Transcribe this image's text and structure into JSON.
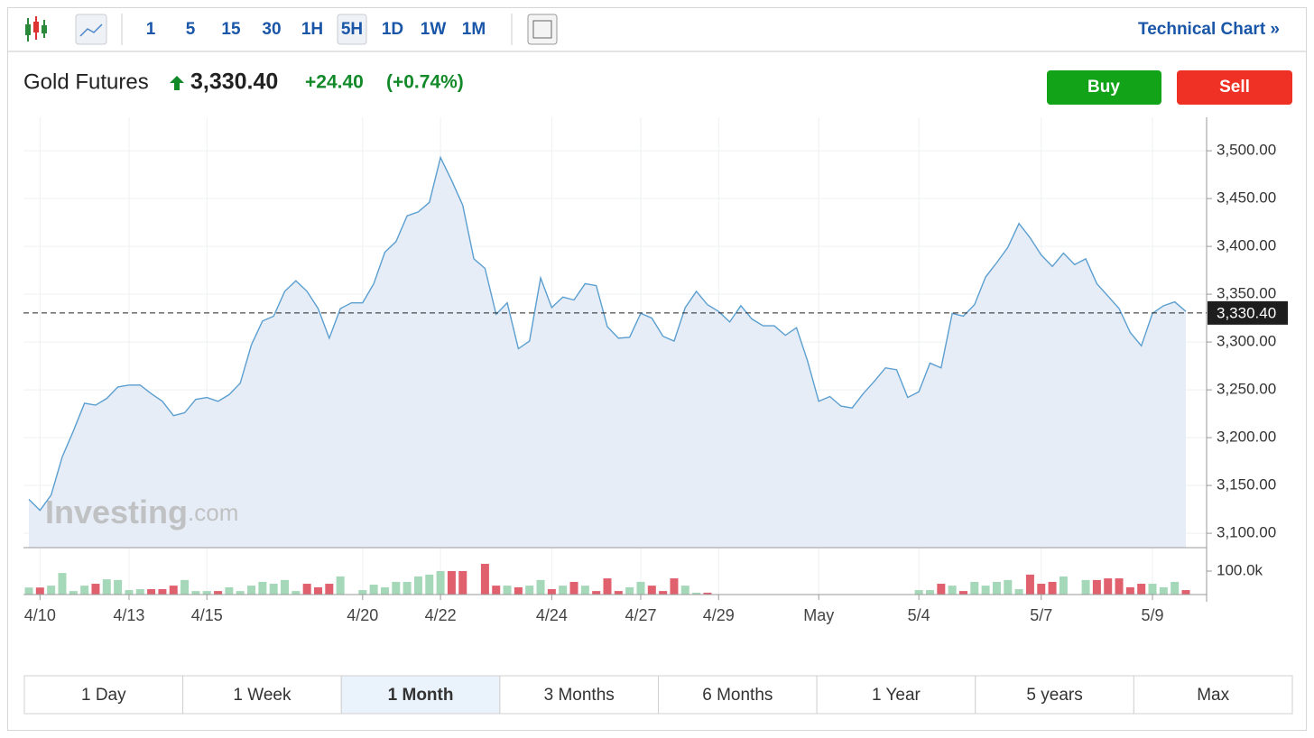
{
  "toolbar": {
    "intervals": [
      "1",
      "5",
      "15",
      "30",
      "1H",
      "5H",
      "1D",
      "1W",
      "1M"
    ],
    "selected": "5H",
    "technical_chart": "Technical Chart »"
  },
  "header": {
    "name": "Gold Futures",
    "price": "3,330.40",
    "change": "+24.40",
    "change_pct": "(+0.74%)",
    "buy": "Buy",
    "sell": "Sell"
  },
  "watermark": {
    "brand": "Investing",
    "suffix": ".com"
  },
  "chart_data": {
    "type": "area",
    "color": "#5b9fd0",
    "fill": "#e6edf6",
    "grid": true,
    "categories": [
      null,
      "4/10",
      null,
      null,
      null,
      null,
      null,
      null,
      null,
      "4/13",
      null,
      null,
      null,
      null,
      null,
      null,
      "4/15",
      null,
      null,
      null,
      null,
      null,
      null,
      null,
      null,
      null,
      null,
      null,
      null,
      null,
      "4/20",
      null,
      null,
      null,
      null,
      null,
      null,
      "4/22",
      null,
      null,
      null,
      null,
      null,
      null,
      null,
      null,
      null,
      "4/24",
      null,
      null,
      null,
      null,
      null,
      null,
      null,
      "4/27",
      null,
      null,
      null,
      null,
      null,
      null,
      "4/29",
      null,
      null,
      null,
      null,
      null,
      null,
      null,
      null,
      "May",
      null,
      null,
      null,
      null,
      null,
      null,
      null,
      null,
      "5/4",
      null,
      null,
      null,
      null,
      null,
      null,
      null,
      null,
      null,
      null,
      "5/7",
      null,
      null,
      null,
      null,
      null,
      null,
      null,
      null,
      null,
      "5/9",
      null,
      null,
      null
    ],
    "values": [
      3135.5,
      3124,
      3140,
      3180,
      3207,
      3236,
      3234,
      3241,
      3253,
      3255,
      3255,
      3246,
      3238,
      3223,
      3226,
      3240,
      3242,
      3238,
      3245,
      3257,
      3297,
      3322,
      3327,
      3353,
      3364,
      3353,
      3335,
      3304,
      3335,
      3341,
      3341,
      3361,
      3394,
      3405,
      3432,
      3436,
      3446,
      3493,
      3469,
      3443,
      3387,
      3377,
      3329,
      3341,
      3293,
      3301,
      3367,
      3336,
      3347,
      3344,
      3361,
      3359,
      3316,
      3304,
      3305,
      3330,
      3325,
      3306,
      3301,
      3336,
      3353,
      3339,
      3332,
      3321,
      3338,
      3324,
      3317,
      3317,
      3307,
      3315,
      3280,
      3238,
      3243,
      3233,
      3231,
      3246,
      3259,
      3273,
      3271,
      3242,
      3248,
      3278,
      3273,
      3330,
      3327,
      3339,
      3368,
      3383,
      3399,
      3424,
      3409,
      3391,
      3379,
      3393,
      3381,
      3387,
      3361,
      3348,
      3335,
      3310,
      3296,
      3330,
      3338,
      3342,
      3332
    ],
    "ylim": [
      3085,
      3535
    ],
    "yticks": [
      {
        "value": 3100,
        "label": "3,100.00"
      },
      {
        "value": 3150,
        "label": "3,150.00"
      },
      {
        "value": 3200,
        "label": "3,200.00"
      },
      {
        "value": 3250,
        "label": "3,250.00"
      },
      {
        "value": 3300,
        "label": "3,300.00"
      },
      {
        "value": 3350,
        "label": "3,350.00"
      },
      {
        "value": 3400,
        "label": "3,400.00"
      },
      {
        "value": 3450,
        "label": "3,450.00"
      },
      {
        "value": 3500,
        "label": "3,500.00"
      }
    ],
    "current": {
      "value": 3330.4,
      "label": "3,330.40"
    },
    "volume": {
      "values": [
        30,
        30,
        38,
        92,
        15,
        38,
        46,
        65,
        62,
        19,
        23,
        23,
        23,
        38,
        62,
        15,
        15,
        15,
        31,
        15,
        38,
        54,
        46,
        62,
        15,
        46,
        31,
        46,
        77,
        null,
        19,
        42,
        31,
        54,
        54,
        77,
        85,
        100,
        100,
        100,
        null,
        131,
        38,
        38,
        31,
        38,
        62,
        23,
        38,
        54,
        38,
        15,
        69,
        15,
        31,
        54,
        38,
        15,
        69,
        38,
        8,
        8,
        null,
        null,
        null,
        null,
        null,
        null,
        null,
        null,
        null,
        null,
        null,
        null,
        null,
        null,
        null,
        null,
        null,
        null,
        19,
        19,
        46,
        38,
        15,
        54,
        38,
        54,
        62,
        23,
        85,
        46,
        54,
        77,
        null,
        62,
        62,
        69,
        69,
        31,
        46,
        46,
        31,
        54,
        19
      ],
      "ylim": [
        0,
        200
      ],
      "yticks": [
        {
          "value": 100,
          "label": "100.0k"
        }
      ],
      "up_color": "#a5d8b8",
      "down_color": "#e0606e"
    }
  },
  "ranges": {
    "items": [
      "1 Day",
      "1 Week",
      "1 Month",
      "3 Months",
      "6 Months",
      "1 Year",
      "5 years",
      "Max"
    ],
    "selected": "1 Month"
  }
}
